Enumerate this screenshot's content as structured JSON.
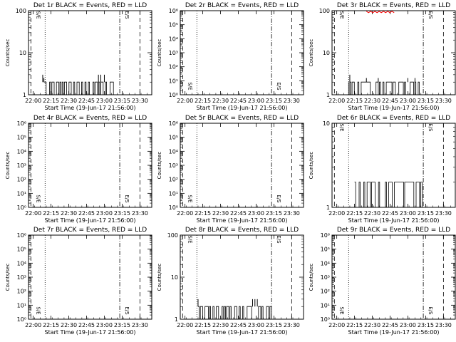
{
  "colors": {
    "events": "#000000",
    "lld": "#ff0000",
    "background": "#ffffff"
  },
  "time_ticks": [
    "22:00",
    "22:15",
    "22:30",
    "22:45",
    "23:00",
    "23:15",
    "23:30"
  ],
  "xlabel": "Start Time (19-Jun-17 21:56:00)",
  "ylabel": "Counts/sec",
  "markers": {
    "dotted_line_time": "22:10",
    "dashdot_line_time": "23:13",
    "dashed_line_times": [
      "21:58",
      "23:30"
    ],
    "label_start": "S/E",
    "label_end": "E/S"
  },
  "chart_data": [
    {
      "type": "line",
      "title": "Det 1r BLACK = Events, RED = LLD",
      "xlabel": "Start Time (19-Jun-17 21:56:00)",
      "ylabel": "Counts/sec",
      "yscale": "log",
      "ylim": [
        1,
        100
      ],
      "yticks": [
        "1",
        "10",
        "100"
      ],
      "x_range": [
        "21:56",
        "23:40"
      ],
      "series": [
        {
          "color": "black",
          "style": "binary-bars",
          "x_range": [
            "22:09",
            "23:08"
          ],
          "low": 1,
          "high": 2,
          "points": [
            [
              "22:08",
              3
            ],
            [
              "22:09",
              2.5
            ],
            [
              "22:55",
              3
            ],
            [
              "22:57",
              3
            ],
            [
              "23:00",
              3
            ]
          ]
        }
      ]
    },
    {
      "type": "line",
      "title": "Det 2r BLACK = Events, RED = LLD",
      "xlabel": "Start Time (19-Jun-17 21:56:00)",
      "ylabel": "Counts/sec",
      "yscale": "log",
      "ylim": [
        1,
        1000000
      ],
      "yticks": [
        "10⁰",
        "10¹",
        "10²",
        "10³",
        "10⁴",
        "10⁵",
        "10⁶"
      ],
      "x_range": [
        "21:56",
        "23:40"
      ],
      "series": []
    },
    {
      "type": "line",
      "title": "Det 3r BLACK = Events, RED = LLD",
      "xlabel": "Start Time (19-Jun-17 21:56:00)",
      "ylabel": "Counts/sec",
      "yscale": "log",
      "ylim": [
        1,
        100
      ],
      "yticks": [
        "1",
        "10",
        "100"
      ],
      "x_range": [
        "21:56",
        "23:40"
      ],
      "series": [
        {
          "color": "black",
          "style": "binary-bars",
          "x_range": [
            "22:10",
            "23:13"
          ],
          "low": 1,
          "high": 2,
          "points": [
            [
              "22:11",
              3
            ],
            [
              "22:25",
              2.5
            ],
            [
              "22:35",
              2.5
            ],
            [
              "23:00",
              2.5
            ],
            [
              "23:06",
              2.5
            ]
          ]
        },
        {
          "color": "red",
          "style": "line",
          "x_range": [
            "22:25",
            "22:50"
          ],
          "level": 95
        }
      ]
    },
    {
      "type": "line",
      "title": "Det 4r BLACK = Events, RED = LLD",
      "xlabel": "Start Time (19-Jun-17 21:56:00)",
      "ylabel": "Counts/sec",
      "yscale": "log",
      "ylim": [
        1,
        1000000
      ],
      "yticks": [
        "10⁰",
        "10¹",
        "10²",
        "10³",
        "10⁴",
        "10⁵",
        "10⁶"
      ],
      "x_range": [
        "21:56",
        "23:40"
      ],
      "series": []
    },
    {
      "type": "line",
      "title": "Det 5r BLACK = Events, RED = LLD",
      "xlabel": "Start Time (19-Jun-17 21:56:00)",
      "ylabel": "Counts/sec",
      "yscale": "log",
      "ylim": [
        1,
        1000000
      ],
      "yticks": [
        "10⁰",
        "10¹",
        "10²",
        "10³",
        "10⁴",
        "10⁵",
        "10⁶"
      ],
      "x_range": [
        "21:56",
        "23:40"
      ],
      "series": []
    },
    {
      "type": "line",
      "title": "Det 6r BLACK = Events, RED = LLD",
      "xlabel": "Start Time (19-Jun-17 21:56:00)",
      "ylabel": "Counts/sec",
      "yscale": "log",
      "ylim": [
        1,
        10
      ],
      "yticks": [
        "1",
        "10"
      ],
      "x_range": [
        "21:56",
        "23:40"
      ],
      "series": [
        {
          "color": "black",
          "style": "binary-bars",
          "x_range": [
            "22:15",
            "23:12"
          ],
          "low": 1,
          "high": 2,
          "points": []
        }
      ]
    },
    {
      "type": "line",
      "title": "Det 7r BLACK = Events, RED = LLD",
      "xlabel": "Start Time (19-Jun-17 21:56:00)",
      "ylabel": "Counts/sec",
      "yscale": "log",
      "ylim": [
        1,
        1000000
      ],
      "yticks": [
        "10⁰",
        "10¹",
        "10²",
        "10³",
        "10⁴",
        "10⁵",
        "10⁶"
      ],
      "x_range": [
        "21:56",
        "23:40"
      ],
      "series": []
    },
    {
      "type": "line",
      "title": "Det 8r BLACK = Events, RED = LLD",
      "xlabel": "Start Time (19-Jun-17 21:56:00)",
      "ylabel": "Counts/sec",
      "yscale": "log",
      "ylim": [
        1,
        100
      ],
      "yticks": [
        "1",
        "10",
        "100"
      ],
      "x_range": [
        "21:56",
        "23:40"
      ],
      "series": [
        {
          "color": "black",
          "style": "binary-bars",
          "x_range": [
            "22:11",
            "23:13"
          ],
          "low": 1,
          "high": 2,
          "points": [
            [
              "22:11",
              3
            ],
            [
              "22:57",
              3
            ],
            [
              "22:59",
              3
            ],
            [
              "23:01",
              3
            ]
          ]
        }
      ]
    },
    {
      "type": "line",
      "title": "Det 9r BLACK = Events, RED = LLD",
      "xlabel": "Start Time (19-Jun-17 21:56:00)",
      "ylabel": "Counts/sec",
      "yscale": "log",
      "ylim": [
        1,
        1000000
      ],
      "yticks": [
        "10⁰",
        "10¹",
        "10²",
        "10³",
        "10⁴",
        "10⁵",
        "10⁶"
      ],
      "x_range": [
        "21:56",
        "23:40"
      ],
      "series": []
    }
  ]
}
